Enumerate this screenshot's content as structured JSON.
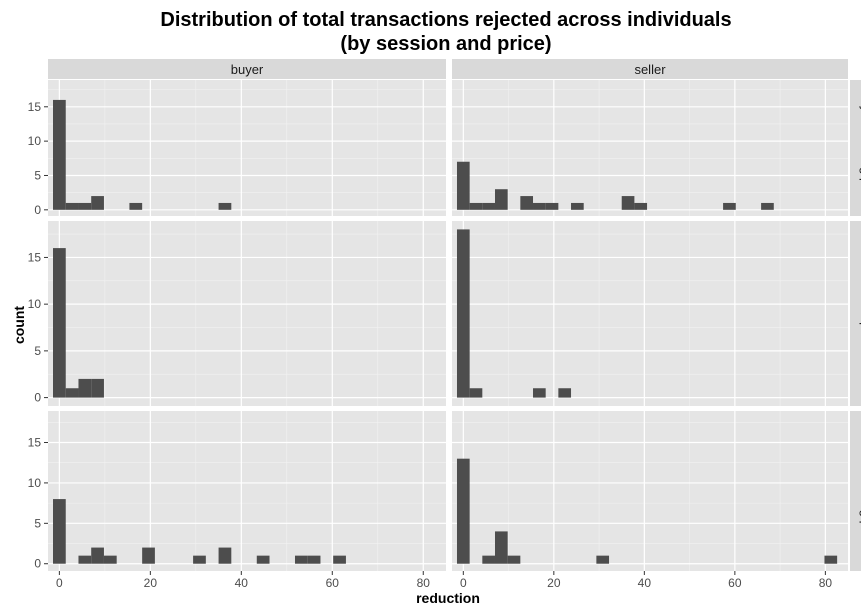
{
  "chart_data": {
    "type": "bar",
    "title_line1": "Distribution of total transactions rejected across individuals",
    "title_line2": "(by session and price)",
    "xlabel": "reduction",
    "ylabel": "count",
    "xlim": [
      -2.5,
      85
    ],
    "ylim": [
      -0.9,
      18.9
    ],
    "x_ticks": [
      "0",
      "20",
      "40",
      "60",
      "80"
    ],
    "y_ticks": [
      "0",
      "5",
      "10",
      "15"
    ],
    "bin_width": 2.8,
    "columns": [
      "buyer",
      "seller"
    ],
    "rows": [
      "Buyer-favoring price",
      "Neutral price",
      "Seller-favoring price"
    ],
    "bar_color": "#4d4d4d",
    "panel_background": "#e5e5e5",
    "strip_background": "#d9d9d9",
    "grid": true,
    "facets": [
      {
        "column": "buyer",
        "row": "Buyer-favoring price",
        "bins": [
          [
            0,
            16
          ],
          [
            2.8,
            1
          ],
          [
            5.6,
            1
          ],
          [
            8.4,
            2
          ],
          [
            16.8,
            1
          ],
          [
            36.4,
            1
          ]
        ]
      },
      {
        "column": "seller",
        "row": "Buyer-favoring price",
        "bins": [
          [
            0,
            7
          ],
          [
            2.8,
            1
          ],
          [
            5.6,
            1
          ],
          [
            8.4,
            3
          ],
          [
            14,
            2
          ],
          [
            16.8,
            1
          ],
          [
            19.6,
            1
          ],
          [
            25.2,
            1
          ],
          [
            36.4,
            2
          ],
          [
            39.2,
            1
          ],
          [
            58.8,
            1
          ],
          [
            67.2,
            1
          ]
        ]
      },
      {
        "column": "buyer",
        "row": "Neutral price",
        "bins": [
          [
            0,
            16
          ],
          [
            2.8,
            1
          ],
          [
            5.6,
            2
          ],
          [
            8.4,
            2
          ]
        ]
      },
      {
        "column": "seller",
        "row": "Neutral price",
        "bins": [
          [
            0,
            18
          ],
          [
            2.8,
            1
          ],
          [
            16.8,
            1
          ],
          [
            22.4,
            1
          ]
        ]
      },
      {
        "column": "buyer",
        "row": "Seller-favoring price",
        "bins": [
          [
            0,
            8
          ],
          [
            5.6,
            1
          ],
          [
            8.4,
            2
          ],
          [
            11.2,
            1
          ],
          [
            19.6,
            2
          ],
          [
            30.8,
            1
          ],
          [
            36.4,
            2
          ],
          [
            44.8,
            1
          ],
          [
            53.2,
            1
          ],
          [
            56,
            1
          ],
          [
            61.6,
            1
          ]
        ]
      },
      {
        "column": "seller",
        "row": "Seller-favoring price",
        "bins": [
          [
            0,
            13
          ],
          [
            5.6,
            1
          ],
          [
            8.4,
            4
          ],
          [
            11.2,
            1
          ],
          [
            30.8,
            1
          ],
          [
            81.2,
            1
          ]
        ]
      }
    ]
  }
}
